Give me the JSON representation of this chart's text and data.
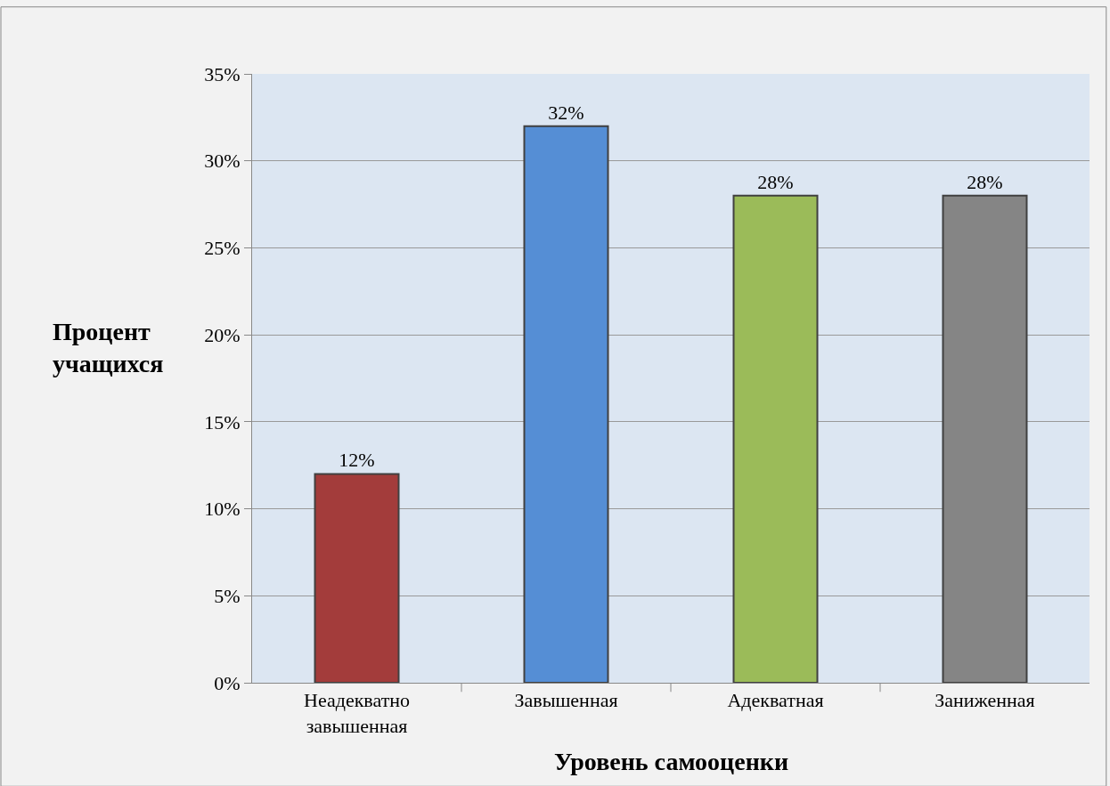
{
  "chart_data": {
    "type": "bar",
    "xlabel": "Уровень самооценки",
    "ylabel": "Процент учащихся",
    "categories": [
      "Неадекватно завышенная",
      "Завышенная",
      "Адекватная",
      "Заниженная"
    ],
    "values": [
      12,
      32,
      28,
      28
    ],
    "value_labels": [
      "12%",
      "32%",
      "28%",
      "28%"
    ],
    "colors": [
      "#a33c3b",
      "#558ed5",
      "#9bbb59",
      "#858585"
    ],
    "ylim": [
      0,
      35
    ],
    "yticks": [
      {
        "value": 0,
        "label": "0%"
      },
      {
        "value": 5,
        "label": "5%"
      },
      {
        "value": 10,
        "label": "10%"
      },
      {
        "value": 15,
        "label": "15%"
      },
      {
        "value": 20,
        "label": "20%"
      },
      {
        "value": 25,
        "label": "25%"
      },
      {
        "value": 30,
        "label": "30%"
      },
      {
        "value": 35,
        "label": "35%"
      }
    ],
    "grid": "y"
  }
}
